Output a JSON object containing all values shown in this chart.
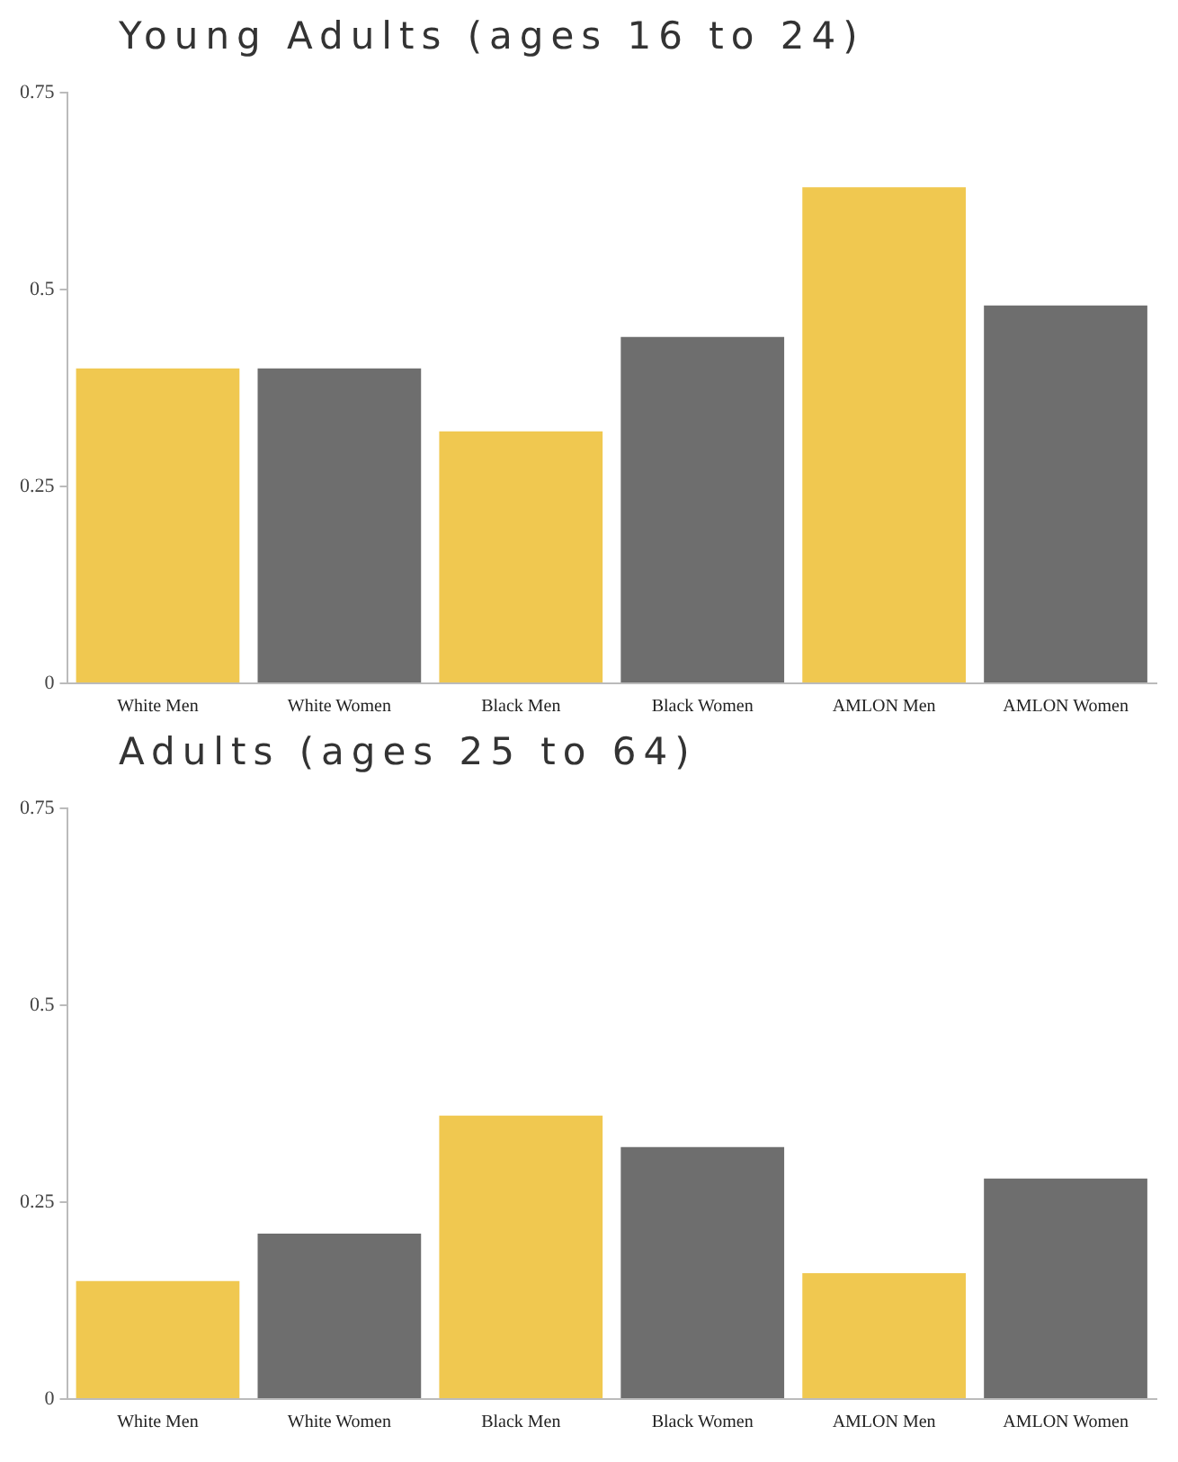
{
  "chart_data": [
    {
      "type": "bar",
      "title": "Young Adults (ages 16 to 24)",
      "categories": [
        "White Men",
        "White Women",
        "Black Men",
        "Black Women",
        "AMLON Men",
        "AMLON Women"
      ],
      "values": [
        0.4,
        0.4,
        0.32,
        0.44,
        0.63,
        0.48
      ],
      "colors": [
        "#f0c850",
        "#6e6e6e",
        "#f0c850",
        "#6e6e6e",
        "#f0c850",
        "#6e6e6e"
      ],
      "ylim": [
        0,
        0.75
      ],
      "yticks": [
        0,
        0.25,
        0.5,
        0.75
      ],
      "grid": false,
      "legend": false
    },
    {
      "type": "bar",
      "title": "Adults (ages 25 to 64)",
      "categories": [
        "White Men",
        "White Women",
        "Black Men",
        "Black Women",
        "AMLON Men",
        "AMLON Women"
      ],
      "values": [
        0.15,
        0.21,
        0.36,
        0.32,
        0.16,
        0.28
      ],
      "colors": [
        "#f0c850",
        "#6e6e6e",
        "#f0c850",
        "#6e6e6e",
        "#f0c850",
        "#6e6e6e"
      ],
      "ylim": [
        0,
        0.75
      ],
      "yticks": [
        0,
        0.25,
        0.5,
        0.75
      ],
      "grid": false,
      "legend": false
    }
  ]
}
